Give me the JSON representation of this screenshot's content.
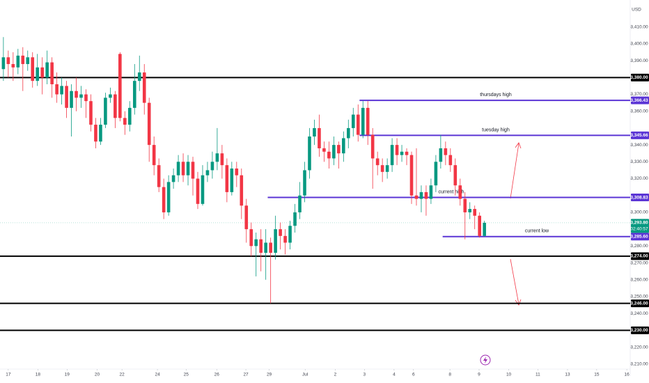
{
  "chart_data": {
    "type": "candlestick",
    "currency": "USD",
    "ylim": [
      3207,
      3426
    ],
    "xlim": [
      -0.7,
      129
    ],
    "up_color": "#089981",
    "down_color": "#f23645",
    "open": [
      3385,
      3392,
      3388,
      3386,
      3393,
      3388,
      3392,
      3378,
      3386,
      3380,
      3389,
      3376,
      3370,
      3375,
      3362,
      3372,
      3368,
      3370,
      3366,
      3352,
      3342,
      3352,
      3368,
      3370,
      3394,
      3356,
      3352,
      3362,
      3378,
      3383,
      3365,
      3340,
      3328,
      3315,
      3300,
      3318,
      3322,
      3330,
      3322,
      3330,
      3320,
      3305,
      3322,
      3325,
      3330,
      3335,
      3328,
      3312,
      3326,
      3322,
      3304,
      3290,
      3280,
      3284,
      3276,
      3282,
      3276,
      3290,
      3286,
      3282,
      3292,
      3300,
      3310,
      3325,
      3345,
      3350,
      3338,
      3336,
      3332,
      3340,
      3335,
      3344,
      3350,
      3358,
      3346,
      3362,
      3346,
      3332,
      3328,
      3324,
      3328,
      3340,
      3334,
      3336,
      3334,
      3310,
      3308,
      3312,
      3308,
      3316,
      3330,
      3338,
      3334,
      3328,
      3316,
      3308,
      3300,
      3302,
      3298,
      3286
    ],
    "high": [
      3404,
      3396,
      3395,
      3397,
      3398,
      3396,
      3395,
      3394,
      3392,
      3396,
      3392,
      3383,
      3380,
      3378,
      3376,
      3380,
      3375,
      3373,
      3370,
      3356,
      3356,
      3371,
      3374,
      3372,
      3395,
      3360,
      3366,
      3388,
      3393,
      3388,
      3368,
      3345,
      3332,
      3320,
      3322,
      3326,
      3334,
      3335,
      3334,
      3333,
      3324,
      3328,
      3330,
      3336,
      3350,
      3340,
      3332,
      3330,
      3330,
      3326,
      3308,
      3294,
      3288,
      3290,
      3290,
      3285,
      3298,
      3294,
      3290,
      3295,
      3305,
      3318,
      3330,
      3350,
      3355,
      3358,
      3342,
      3342,
      3345,
      3342,
      3348,
      3355,
      3362,
      3364,
      3366,
      3366,
      3350,
      3336,
      3332,
      3332,
      3344,
      3344,
      3340,
      3338,
      3336,
      3338,
      3316,
      3316,
      3320,
      3334,
      3346,
      3342,
      3338,
      3332,
      3320,
      3312,
      3306,
      3304,
      3300,
      3295
    ],
    "low": [
      3378,
      3380,
      3378,
      3382,
      3372,
      3384,
      3374,
      3375,
      3370,
      3376,
      3368,
      3365,
      3364,
      3356,
      3345,
      3360,
      3362,
      3356,
      3348,
      3338,
      3340,
      3350,
      3365,
      3350,
      3354,
      3346,
      3348,
      3358,
      3372,
      3358,
      3330,
      3322,
      3312,
      3296,
      3298,
      3314,
      3318,
      3318,
      3316,
      3310,
      3302,
      3304,
      3318,
      3320,
      3325,
      3320,
      3306,
      3310,
      3315,
      3296,
      3282,
      3274,
      3262,
      3265,
      3260,
      3246,
      3272,
      3278,
      3275,
      3278,
      3288,
      3296,
      3306,
      3320,
      3340,
      3333,
      3330,
      3326,
      3328,
      3326,
      3330,
      3338,
      3345,
      3342,
      3344,
      3340,
      3314,
      3322,
      3318,
      3320,
      3324,
      3328,
      3330,
      3328,
      3305,
      3304,
      3300,
      3298,
      3305,
      3312,
      3326,
      3328,
      3324,
      3310,
      3304,
      3284,
      3296,
      3290,
      3285,
      3285.6
    ],
    "close": [
      3392,
      3388,
      3386,
      3393,
      3388,
      3392,
      3378,
      3386,
      3380,
      3389,
      3376,
      3370,
      3375,
      3362,
      3372,
      3368,
      3370,
      3366,
      3352,
      3342,
      3352,
      3368,
      3370,
      3356,
      3356,
      3352,
      3362,
      3378,
      3383,
      3365,
      3340,
      3328,
      3315,
      3300,
      3318,
      3322,
      3330,
      3322,
      3330,
      3320,
      3305,
      3322,
      3325,
      3330,
      3335,
      3328,
      3312,
      3326,
      3322,
      3304,
      3290,
      3280,
      3284,
      3276,
      3282,
      3276,
      3290,
      3286,
      3282,
      3292,
      3300,
      3310,
      3325,
      3345,
      3350,
      3338,
      3336,
      3332,
      3340,
      3335,
      3344,
      3350,
      3358,
      3346,
      3362,
      3346,
      3332,
      3328,
      3324,
      3328,
      3340,
      3334,
      3336,
      3334,
      3310,
      3308,
      3312,
      3308,
      3316,
      3330,
      3338,
      3334,
      3328,
      3316,
      3308,
      3300,
      3302,
      3298,
      3286,
      3293.8
    ],
    "yticks": [
      {
        "value": 3410,
        "label": "3,410.00"
      },
      {
        "value": 3400,
        "label": "3,400.00"
      },
      {
        "value": 3390,
        "label": "3,390.00"
      },
      {
        "value": 3370,
        "label": "3,370.00"
      },
      {
        "value": 3360,
        "label": "3,360.00"
      },
      {
        "value": 3340,
        "label": "3,340.00"
      },
      {
        "value": 3330,
        "label": "3,330.00"
      },
      {
        "value": 3320,
        "label": "3,320.00"
      },
      {
        "value": 3300,
        "label": "3,300.00"
      },
      {
        "value": 3280,
        "label": "3,280.00"
      },
      {
        "value": 3270,
        "label": "3,270.00"
      },
      {
        "value": 3260,
        "label": "3,260.00"
      },
      {
        "value": 3250,
        "label": "3,250.00"
      },
      {
        "value": 3240,
        "label": "3,240.00"
      },
      {
        "value": 3220,
        "label": "3,220.00"
      },
      {
        "value": 3210,
        "label": "3,210.00"
      }
    ],
    "xticks": [
      {
        "value": 1,
        "label": "17"
      },
      {
        "value": 7.1,
        "label": "18"
      },
      {
        "value": 13.1,
        "label": "19"
      },
      {
        "value": 19.3,
        "label": "20"
      },
      {
        "value": 24.4,
        "label": "22"
      },
      {
        "value": 31.7,
        "label": "24"
      },
      {
        "value": 37.6,
        "label": "25"
      },
      {
        "value": 43.9,
        "label": "26"
      },
      {
        "value": 49.9,
        "label": "27"
      },
      {
        "value": 54.7,
        "label": "29"
      },
      {
        "value": 62.1,
        "label": "Jul"
      },
      {
        "value": 68.3,
        "label": "2"
      },
      {
        "value": 74.3,
        "label": "3"
      },
      {
        "value": 80.4,
        "label": "4"
      },
      {
        "value": 84.4,
        "label": "6"
      },
      {
        "value": 91.9,
        "label": "8"
      },
      {
        "value": 97.9,
        "label": "9"
      },
      {
        "value": 104,
        "label": "10"
      },
      {
        "value": 110,
        "label": "11"
      },
      {
        "value": 116.1,
        "label": "13"
      },
      {
        "value": 122.1,
        "label": "15"
      },
      {
        "value": 128.3,
        "label": "16"
      }
    ],
    "levels": [
      {
        "value": 3380,
        "label": "3,380.00",
        "color": "#000000"
      },
      {
        "value": 3274,
        "label": "3,274.00",
        "color": "#000000"
      },
      {
        "value": 3246,
        "label": "3,246.00",
        "color": "#000000"
      },
      {
        "value": 3230,
        "label": "3,230.00",
        "color": "#000000"
      }
    ],
    "lines": [
      {
        "value": 3366.43,
        "label": "3,366.43",
        "color": "#5b35d5",
        "from": 73.3,
        "note": "thursdays high"
      },
      {
        "value": 3345.66,
        "label": "3,345.66",
        "color": "#5b35d5",
        "from": 73.3,
        "note": "tuesday high"
      },
      {
        "value": 3308.83,
        "label": "3,308.83",
        "color": "#5b35d5",
        "from": 54.4,
        "note": "current high"
      },
      {
        "value": 3285.6,
        "label": "3,285.60",
        "color": "#5b35d5",
        "from": 90.4,
        "note": "current low"
      }
    ],
    "last": {
      "value": 3293.8,
      "label": "3,293.80",
      "countdown": "02:40:57",
      "color": "#089981"
    }
  }
}
